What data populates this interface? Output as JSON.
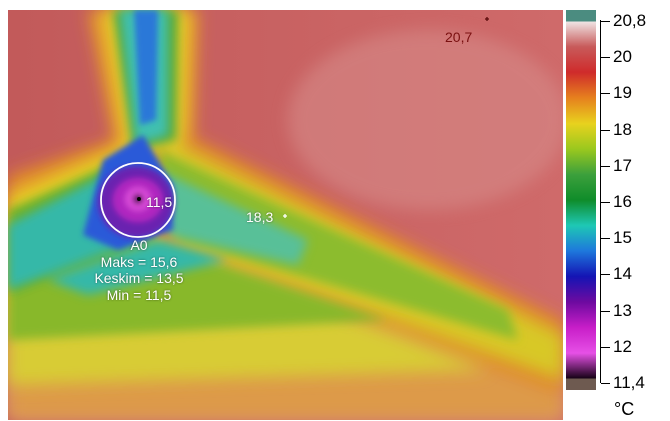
{
  "image": {
    "description_free": true
  },
  "spots": {
    "hot": "20,7",
    "center": "18,3",
    "cold": "11,5"
  },
  "area": {
    "name": "A0",
    "max": "Maks = 15,6",
    "avg": "Keskim = 13,5",
    "min": "Min = 11,5"
  },
  "scale": {
    "top": "20,8",
    "bottom": "11,4",
    "ticks": [
      "20",
      "19",
      "18",
      "17",
      "16",
      "15",
      "14",
      "13",
      "12"
    ],
    "unit": "°C",
    "colors": [
      "#4b8c80",
      "#f0e6e6",
      "#c85a5a",
      "#cf2b2b",
      "#e6801e",
      "#e8d21e",
      "#9ac81e",
      "#3ca03c",
      "#0f8c2a",
      "#1ec8b4",
      "#1e78dc",
      "#1414b4",
      "#6e0aa0",
      "#c81ec8",
      "#e650e6",
      "#140014",
      "#6e5a50"
    ]
  }
}
